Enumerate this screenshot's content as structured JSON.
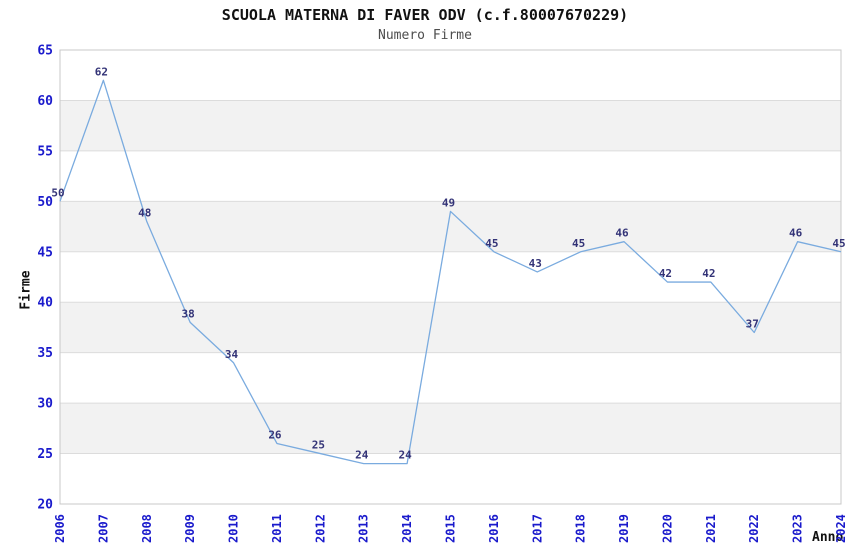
{
  "chart_data": {
    "type": "line",
    "title": "SCUOLA MATERNA DI FAVER ODV (c.f.80007670229)",
    "subtitle": "Numero Firme",
    "xlabel": "Anno",
    "ylabel": "Firme",
    "x": [
      "2006",
      "2007",
      "2008",
      "2009",
      "2010",
      "2011",
      "2012",
      "2013",
      "2014",
      "2015",
      "2016",
      "2017",
      "2018",
      "2019",
      "2020",
      "2021",
      "2022",
      "2023",
      "2024"
    ],
    "values": [
      50,
      62,
      48,
      38,
      34,
      26,
      25,
      24,
      24,
      49,
      45,
      43,
      45,
      46,
      42,
      42,
      37,
      46,
      45
    ],
    "ylim": [
      20,
      65
    ],
    "ytick_step": 5,
    "yticks": [
      20,
      25,
      30,
      35,
      40,
      45,
      50,
      55,
      60,
      65
    ],
    "grid": "horizontal-bands",
    "legend": "none",
    "point_labels_shown": true,
    "colors": {
      "line": "#7aabdf",
      "tick_label": "#1a1acc",
      "data_label": "#333377",
      "band": "#f2f2f2",
      "gridline": "#dcdcdc",
      "border": "#c8c8c8",
      "title": "#111111",
      "subtitle": "#4d4d4d",
      "axis_title": "#111111",
      "background": "#ffffff"
    }
  }
}
